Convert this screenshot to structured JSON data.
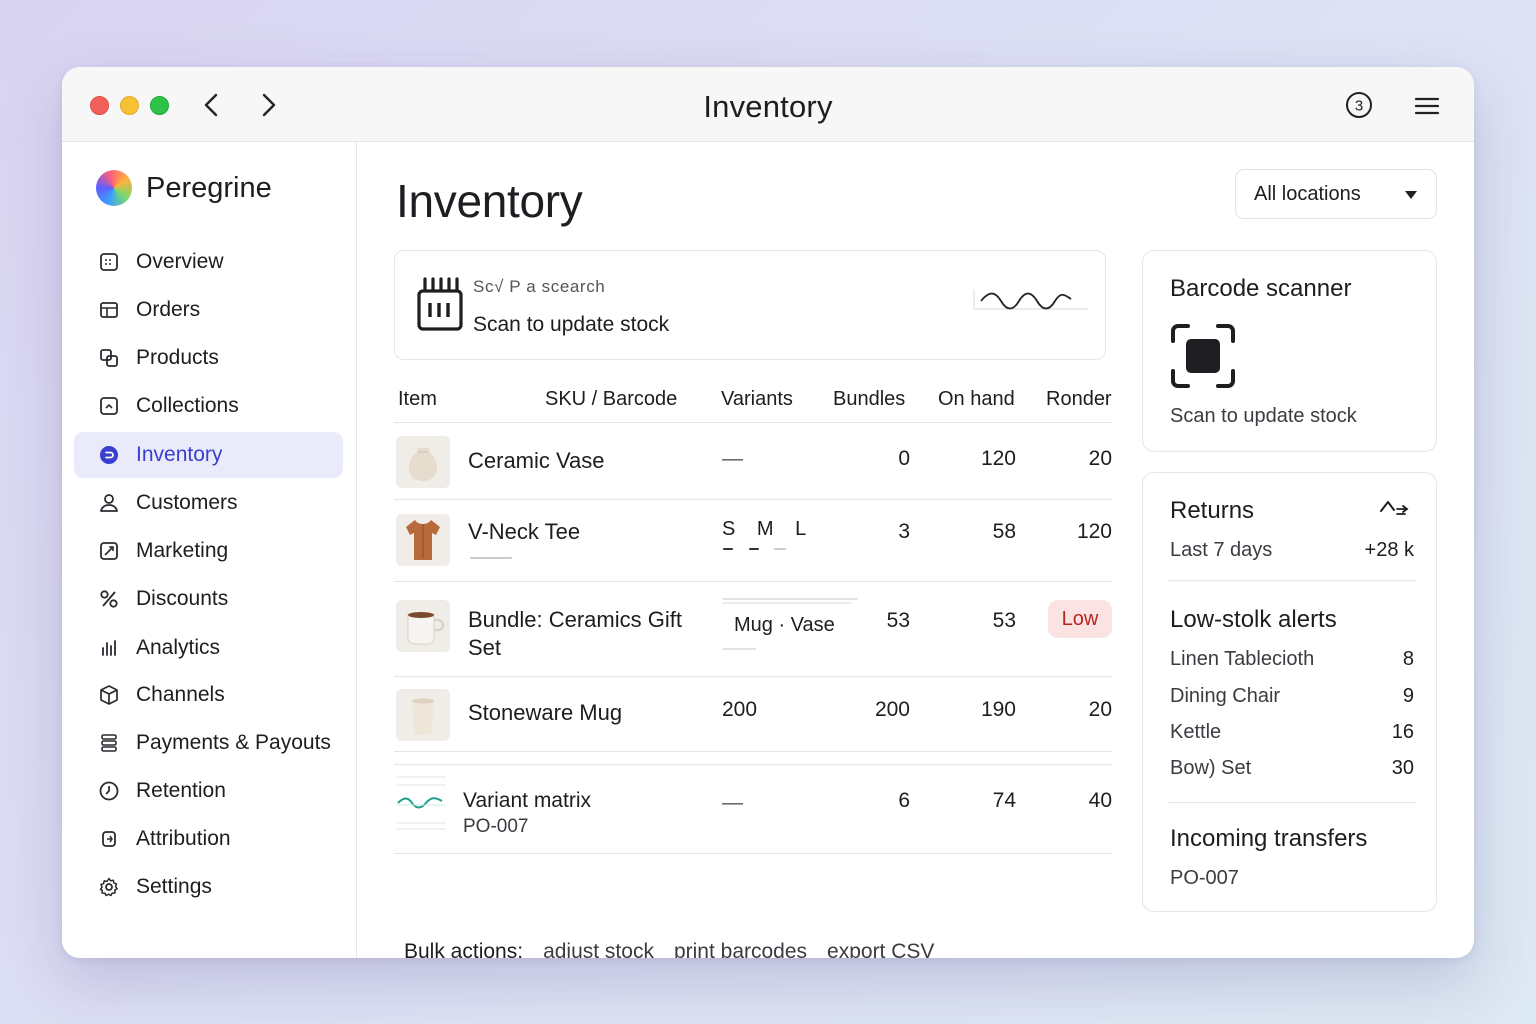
{
  "window": {
    "title": "Inventory",
    "badge_count": "3"
  },
  "brand": {
    "name": "Peregrine"
  },
  "sidebar": {
    "items": [
      {
        "label": "Overview",
        "icon": "calendar-icon",
        "active": false
      },
      {
        "label": "Orders",
        "icon": "box-icon",
        "active": false
      },
      {
        "label": "Products",
        "icon": "tags-icon",
        "active": false
      },
      {
        "label": "Collections",
        "icon": "collection-icon",
        "active": false
      },
      {
        "label": "Inventory",
        "icon": "inventory-icon",
        "active": true
      },
      {
        "label": "Customers",
        "icon": "person-icon",
        "active": false
      },
      {
        "label": "Marketing",
        "icon": "megaphone-icon",
        "active": false
      },
      {
        "label": "Discounts",
        "icon": "percent-icon",
        "active": false
      },
      {
        "label": "Analytics",
        "icon": "bar-chart-icon",
        "active": false
      },
      {
        "label": "Channels",
        "icon": "cube-icon",
        "active": false
      },
      {
        "label": "Payments & Payouts",
        "icon": "stack-icon",
        "active": false
      },
      {
        "label": "Retention",
        "icon": "clock-icon",
        "active": false
      },
      {
        "label": "Attribution",
        "icon": "link-icon",
        "active": false
      },
      {
        "label": "Settings",
        "icon": "gear-icon",
        "active": false
      }
    ]
  },
  "main": {
    "title": "Inventory",
    "location_select": {
      "value": "All locations"
    },
    "scan_card": {
      "hint": "Sc√ P a scearch",
      "label": "Scan to update stock"
    },
    "table": {
      "headers": {
        "item": "Item",
        "sku": "SKU / Barcode",
        "variants": "Variants",
        "bundles": "Bundles",
        "on_hand": "On hand",
        "reorder": "Ronder"
      },
      "rows": [
        {
          "name": "Ceramic Vase",
          "variants": "—",
          "bundles": "0",
          "on_hand": "120",
          "reorder": "20"
        },
        {
          "name": "V-Neck Tee",
          "variants": "S M L",
          "bundles": "3",
          "on_hand": "58",
          "reorder": "120"
        },
        {
          "name_line1": "Bundle: Ceramics Gift",
          "name_line2": "Set",
          "variants": "Mug · Vase",
          "bundles": "53",
          "on_hand": "53",
          "reorder": "Low"
        },
        {
          "name": "Stoneware Mug",
          "variants": "200",
          "bundles": "200",
          "on_hand": "190",
          "reorder": "20"
        },
        {
          "name": "Variant matrix",
          "subtitle": "PO-007",
          "variants": "—",
          "bundles": "6",
          "on_hand": "74",
          "reorder": "40"
        }
      ]
    },
    "bulk": {
      "label": "Bulk actions:",
      "actions": [
        "adjust stock",
        "print barcodes",
        "export CSV"
      ]
    }
  },
  "scanner_panel": {
    "title": "Barcode scanner",
    "label": "Scan to update stock"
  },
  "returns": {
    "title": "Returns",
    "period": "Last 7 days",
    "value": "+28 k"
  },
  "low_stock": {
    "title": "Low-stolk alerts",
    "items": [
      {
        "name": "Linen Tablecioth",
        "count": "8"
      },
      {
        "name": "Dining Chair",
        "count": "9"
      },
      {
        "name": "Kettle",
        "count": "16"
      },
      {
        "name": "Bow) Set",
        "count": "30"
      }
    ]
  },
  "incoming": {
    "title": "Incoming transfers",
    "ref": "PO-007"
  },
  "colors": {
    "accent": "#3a3fd0",
    "active_bg": "#e9ebfb",
    "low_bg": "#fbe3e3",
    "low_text": "#b3261e"
  }
}
